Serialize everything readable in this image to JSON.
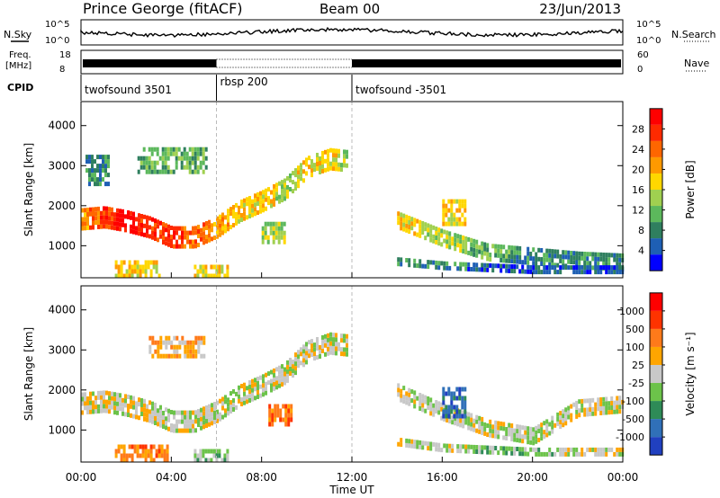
{
  "header": {
    "station": "Prince George (fitACF)",
    "beam": "Beam 00",
    "date": "23/Jun/2013"
  },
  "side_labels": {
    "nsky": "N.Sky",
    "freq": "Freq.",
    "freq_unit": "[MHz]",
    "cpid": "CPID",
    "nsearch": "N.Search",
    "nave": "Nave"
  },
  "noise_panel": {
    "left_ticks": [
      "10^5",
      "10^0"
    ],
    "right_ticks": [
      "10^5",
      "10^0"
    ]
  },
  "freq_panel": {
    "left_ticks": [
      "18",
      "8"
    ],
    "right_ticks": [
      "60",
      "0"
    ]
  },
  "cpid_segments": [
    {
      "label": "twofsound 3501",
      "start_hour": 0,
      "end_hour": 6
    },
    {
      "label": "rbsp 200",
      "start_hour": 6,
      "end_hour": 12
    },
    {
      "label": "twofsound -3501",
      "start_hour": 12,
      "end_hour": 24
    }
  ],
  "ylabel": "Slant Range [km]",
  "xlabel": "Time UT",
  "yticks": [
    "1000",
    "2000",
    "3000",
    "4000"
  ],
  "xticks": [
    "00:00",
    "04:00",
    "08:00",
    "12:00",
    "16:00",
    "20:00",
    "00:00"
  ],
  "colors": {
    "power": [
      "#0000ff",
      "#1e5fb4",
      "#2f7f5f",
      "#5cb85c",
      "#a0d050",
      "#ffd700",
      "#ff9900",
      "#ff6600",
      "#ff2a00",
      "#ff0000"
    ],
    "velocity": [
      "#2040c0",
      "#3070b8",
      "#2e8b57",
      "#6cc34a",
      "#c8c8c8",
      "#ffa500",
      "#ff7a1a",
      "#ff3300",
      "#ff0000"
    ],
    "ground_scatter": "#bfbfbf"
  },
  "chart_data": [
    {
      "type": "heatmap",
      "name": "power",
      "colorbar_label": "Power [dB]",
      "colorbar_ticks": [
        "4",
        "8",
        "12",
        "16",
        "20",
        "24",
        "28"
      ],
      "xlim": [
        0,
        24
      ],
      "ylim": [
        200,
        4600
      ],
      "features": [
        {
          "kind": "band",
          "t": [
            0,
            1,
            2,
            3,
            4,
            5,
            6,
            7,
            8,
            9,
            10,
            11,
            11.8
          ],
          "r": [
            1750,
            1800,
            1700,
            1550,
            1300,
            1300,
            1550,
            1950,
            2200,
            2500,
            3050,
            3250,
            3200
          ],
          "halfwidth": 260,
          "level": [
            6,
            8,
            9,
            8,
            8,
            7,
            6,
            5,
            5,
            4,
            5,
            5,
            4
          ]
        },
        {
          "kind": "band",
          "t": [
            14,
            16,
            18,
            20,
            22,
            24
          ],
          "r": [
            1700,
            1250,
            900,
            800,
            700,
            650
          ],
          "halfwidth": 180,
          "level": [
            5,
            4,
            3,
            2,
            2,
            2
          ]
        },
        {
          "kind": "band",
          "t": [
            14,
            16,
            18,
            20,
            22,
            24
          ],
          "r": [
            700,
            600,
            550,
            500,
            500,
            500
          ],
          "halfwidth": 100,
          "level": [
            2,
            2,
            1,
            1,
            1,
            1
          ]
        },
        {
          "kind": "patch",
          "t": [
            1.5,
            3.5
          ],
          "r": [
            300,
            650
          ],
          "level": 5
        },
        {
          "kind": "patch",
          "t": [
            8.0,
            9.0
          ],
          "r": [
            1150,
            1700
          ],
          "level": 4
        },
        {
          "kind": "patch",
          "t": [
            2.5,
            5.5
          ],
          "r": [
            2900,
            3500
          ],
          "level": 3
        },
        {
          "kind": "patch",
          "t": [
            0.2,
            1.2
          ],
          "r": [
            2600,
            3300
          ],
          "level": 2
        },
        {
          "kind": "patch",
          "t": [
            5.0,
            6.5
          ],
          "r": [
            300,
            600
          ],
          "level": 5
        },
        {
          "kind": "patch",
          "t": [
            16.0,
            17.0
          ],
          "r": [
            1600,
            2200
          ],
          "level": 5
        }
      ]
    },
    {
      "type": "heatmap",
      "name": "velocity",
      "colorbar_label": "Velocity [m s⁻¹]",
      "colorbar_ticks": [
        "1000",
        "500",
        "100",
        "25",
        "-25",
        "-100",
        "-500",
        "-1000"
      ],
      "xlim": [
        0,
        24
      ],
      "ylim": [
        200,
        4600
      ],
      "features": [
        {
          "kind": "band",
          "t": [
            0,
            1,
            2,
            3,
            4,
            5,
            6,
            7,
            8,
            9,
            10,
            11,
            11.8
          ],
          "r": [
            1750,
            1800,
            1700,
            1550,
            1300,
            1300,
            1550,
            1950,
            2200,
            2500,
            3050,
            3250,
            3200
          ],
          "halfwidth": 260,
          "level": [
            4,
            4,
            4,
            4,
            4,
            4,
            4,
            4,
            4,
            4,
            4,
            4,
            4
          ]
        },
        {
          "kind": "band",
          "t": [
            14,
            16,
            18,
            20,
            22,
            24
          ],
          "r": [
            2000,
            1500,
            1100,
            900,
            1600,
            1700
          ],
          "halfwidth": 170,
          "level": [
            4,
            4,
            4,
            4,
            4,
            4
          ]
        },
        {
          "kind": "band",
          "t": [
            14,
            16,
            18,
            20,
            22,
            24
          ],
          "r": [
            800,
            650,
            600,
            550,
            550,
            550
          ],
          "halfwidth": 100,
          "level": [
            4,
            4,
            3,
            3,
            4,
            4
          ]
        },
        {
          "kind": "patch",
          "t": [
            1.5,
            3.8
          ],
          "r": [
            300,
            650
          ],
          "level": 6
        },
        {
          "kind": "patch",
          "t": [
            8.3,
            9.3
          ],
          "r": [
            1200,
            1700
          ],
          "level": 6
        },
        {
          "kind": "patch",
          "t": [
            3.0,
            5.5
          ],
          "r": [
            2900,
            3400
          ],
          "level": 5
        },
        {
          "kind": "patch",
          "t": [
            16.0,
            17.0
          ],
          "r": [
            1400,
            2100
          ],
          "level": 1
        },
        {
          "kind": "patch",
          "t": [
            5.0,
            6.5
          ],
          "r": [
            300,
            600
          ],
          "level": 3
        }
      ]
    }
  ]
}
